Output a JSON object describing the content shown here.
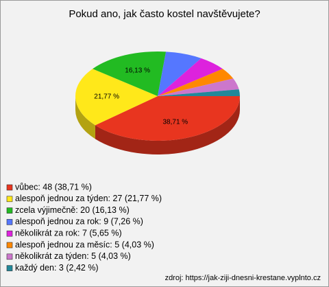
{
  "chart_data": {
    "type": "pie",
    "title": "Pokud ano, jak často kostel navštěvujete?",
    "categories": [
      "vůbec: 48 (38,71 %)",
      "alespoň jednou za týden: 27 (21,77 %)",
      "zcela výjimečně: 20 (16,13 %)",
      "alespoň jednou za rok: 9 (7,26 %)",
      "několikrát za rok: 7 (5,65 %)",
      "alespoň jednou za měsíc: 5 (4,03 %)",
      "několikrát za týden: 5 (4,03 %)",
      "každý den: 3 (2,42 %)"
    ],
    "values": [
      38.71,
      21.77,
      16.13,
      7.26,
      5.65,
      4.03,
      4.03,
      2.42
    ],
    "value_labels": [
      "38,71 %",
      "21,77 %",
      "16,13 %",
      null,
      null,
      null,
      null,
      null
    ],
    "colors": [
      "#e8351f",
      "#ffe81a",
      "#22bb22",
      "#5577ff",
      "#dd22dd",
      "#ff8800",
      "#cc77cc",
      "#228899"
    ],
    "source": "zdroj: https://jak-ziji-dnesni-krestane.vyplnto.cz"
  }
}
